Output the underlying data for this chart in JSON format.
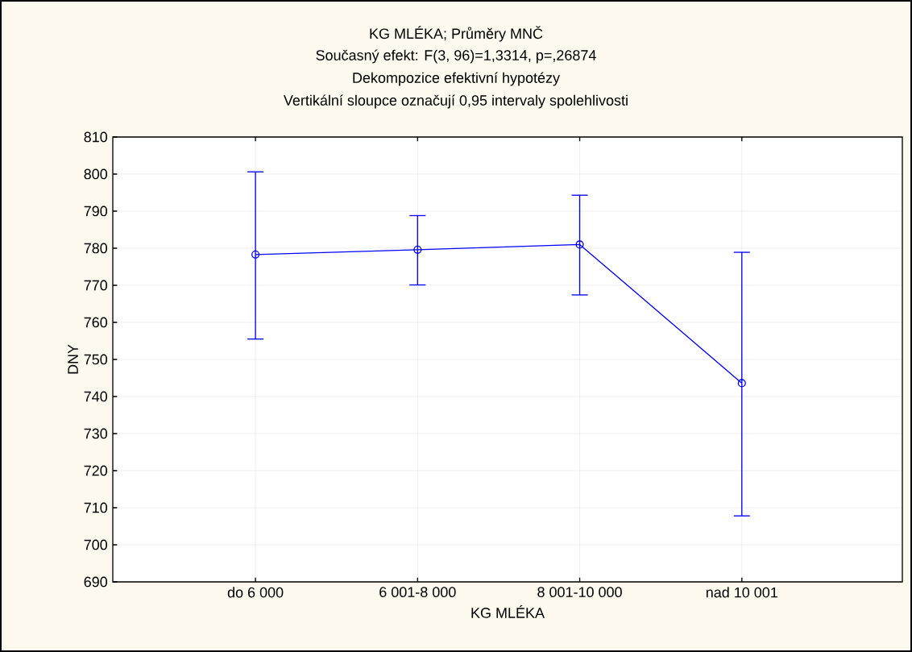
{
  "chart_data": {
    "type": "line",
    "title": "KG MLÉKA; Průměry MNČ",
    "subtitle": "Současný efekt: F(3, 96)=1,3314, p=,26874",
    "annotations": [
      "Dekompozice efektivní hypotézy",
      "Vertikální sloupce označují 0,95 intervaly spolehlivosti"
    ],
    "xlabel": "KG MLÉKA",
    "ylabel": "DNY",
    "categories": [
      "do 6 000",
      "6 001-8 000",
      "8 001-10 000",
      "nad 10 001"
    ],
    "series": [
      {
        "color": "#0000ff",
        "values": [
          778.3,
          779.6,
          781.0,
          743.6
        ],
        "errors": [
          [
            755.5,
            800.6
          ],
          [
            770.1,
            788.8
          ],
          [
            767.4,
            794.3
          ],
          [
            707.8,
            778.9
          ]
        ]
      }
    ],
    "ylim": [
      690,
      810
    ],
    "yticks": [
      690,
      700,
      710,
      720,
      730,
      740,
      750,
      760,
      770,
      780,
      790,
      800,
      810
    ],
    "grid": true,
    "marker": "circle",
    "line_style": "solid"
  }
}
